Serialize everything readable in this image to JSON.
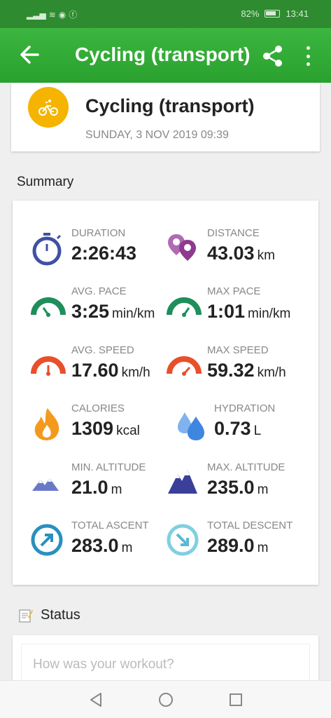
{
  "status_bar": {
    "battery": "82%",
    "time": "13:41"
  },
  "app_bar": {
    "title": "Cycling (transport)"
  },
  "header": {
    "activity": "Cycling (transport)",
    "date": "SUNDAY, 3 NOV 2019 09:39"
  },
  "summary": {
    "title": "Summary",
    "metrics": [
      {
        "label": "DURATION",
        "value": "2:26:43",
        "unit": "",
        "icon": "stopwatch-icon"
      },
      {
        "label": "DISTANCE",
        "value": "43.03",
        "unit": "km",
        "icon": "location-pins-icon"
      },
      {
        "label": "AVG. PACE",
        "value": "3:25",
        "unit": "min/km",
        "icon": "pace-gauge-icon"
      },
      {
        "label": "MAX PACE",
        "value": "1:01",
        "unit": "min/km",
        "icon": "max-pace-gauge-icon"
      },
      {
        "label": "AVG. SPEED",
        "value": "17.60",
        "unit": "km/h",
        "icon": "speed-gauge-icon"
      },
      {
        "label": "MAX SPEED",
        "value": "59.32",
        "unit": "km/h",
        "icon": "max-speed-gauge-icon"
      },
      {
        "label": "CALORIES",
        "value": "1309",
        "unit": "kcal",
        "icon": "flame-icon"
      },
      {
        "label": "HYDRATION",
        "value": "0.73",
        "unit": "L",
        "icon": "water-drops-icon"
      },
      {
        "label": "MIN. ALTITUDE",
        "value": "21.0",
        "unit": "m",
        "icon": "low-mountain-icon"
      },
      {
        "label": "MAX. ALTITUDE",
        "value": "235.0",
        "unit": "m",
        "icon": "high-mountain-icon"
      },
      {
        "label": "TOTAL ASCENT",
        "value": "283.0",
        "unit": "m",
        "icon": "ascent-arrow-icon"
      },
      {
        "label": "TOTAL DESCENT",
        "value": "289.0",
        "unit": "m",
        "icon": "descent-arrow-icon"
      }
    ]
  },
  "status": {
    "title": "Status",
    "placeholder": "How was your workout?"
  },
  "colors": {
    "appbar_green": "#2aa12f",
    "activity_badge": "#f4b400",
    "duration_blue": "#3f51a5",
    "distance_purple": "#8e3a8e",
    "pace_green": "#1e8e5a",
    "speed_red": "#e8502a",
    "calories_orange": "#f39a1e",
    "hydration_blue": "#4a8fe0",
    "mountain_indigo": "#3a3f9a",
    "ascent_blue": "#2a8fc0",
    "descent_cyan": "#7fd0e0"
  }
}
